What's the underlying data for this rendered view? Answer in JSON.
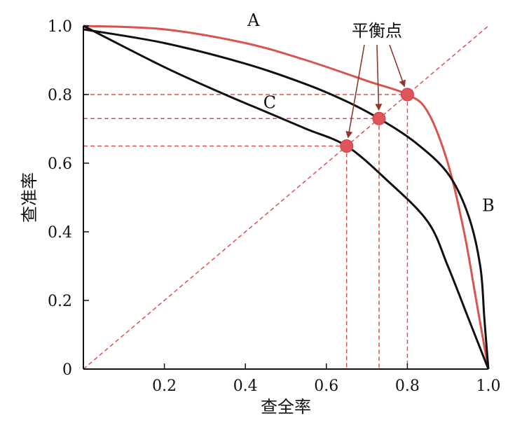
{
  "chart_data": {
    "type": "line",
    "title": "",
    "xlabel": "查全率",
    "ylabel": "查准率",
    "xlim": [
      0,
      1
    ],
    "ylim": [
      0,
      1
    ],
    "x_ticks": [
      {
        "value": 0.2,
        "label": "0.2"
      },
      {
        "value": 0.4,
        "label": "0.4"
      },
      {
        "value": 0.6,
        "label": "0.6"
      },
      {
        "value": 0.8,
        "label": "0.8"
      },
      {
        "value": 1.0,
        "label": "1.0"
      }
    ],
    "y_ticks": [
      {
        "value": 0,
        "label": "0"
      },
      {
        "value": 0.2,
        "label": "0.2"
      },
      {
        "value": 0.4,
        "label": "0.4"
      },
      {
        "value": 0.6,
        "label": "0.6"
      },
      {
        "value": 0.8,
        "label": "0.8"
      },
      {
        "value": 1.0,
        "label": "1.0"
      }
    ],
    "grid": false,
    "series": [
      {
        "name": "A",
        "color": "#d9534f",
        "points": [
          [
            0,
            1.0
          ],
          [
            0.2,
            0.99
          ],
          [
            0.4,
            0.95
          ],
          [
            0.55,
            0.9
          ],
          [
            0.7,
            0.84
          ],
          [
            0.8,
            0.8
          ],
          [
            0.85,
            0.75
          ],
          [
            0.9,
            0.6
          ],
          [
            0.94,
            0.4
          ],
          [
            0.97,
            0.2
          ],
          [
            1.0,
            0.0
          ]
        ]
      },
      {
        "name": "B",
        "color": "#111111",
        "points": [
          [
            0,
            0.99
          ],
          [
            0.2,
            0.95
          ],
          [
            0.4,
            0.89
          ],
          [
            0.55,
            0.83
          ],
          [
            0.65,
            0.78
          ],
          [
            0.73,
            0.73
          ],
          [
            0.82,
            0.66
          ],
          [
            0.9,
            0.57
          ],
          [
            0.95,
            0.45
          ],
          [
            0.98,
            0.3
          ],
          [
            0.99,
            0.15
          ],
          [
            1.0,
            0.0
          ]
        ]
      },
      {
        "name": "C",
        "color": "#111111",
        "points": [
          [
            0,
            1.0
          ],
          [
            0.2,
            0.88
          ],
          [
            0.35,
            0.8
          ],
          [
            0.45,
            0.75
          ],
          [
            0.55,
            0.7
          ],
          [
            0.65,
            0.65
          ],
          [
            0.75,
            0.55
          ],
          [
            0.85,
            0.43
          ],
          [
            0.9,
            0.3
          ],
          [
            0.95,
            0.15
          ],
          [
            1.0,
            0.0
          ]
        ]
      }
    ],
    "series_labels": [
      {
        "name": "A",
        "x": 0.42,
        "y": 1.0
      },
      {
        "name": "B",
        "x": 1.0,
        "y": 0.46
      },
      {
        "name": "C",
        "x": 0.46,
        "y": 0.76
      }
    ],
    "diagonal": {
      "from": [
        0,
        0
      ],
      "to": [
        1,
        1
      ],
      "color": "#d9534f",
      "style": "dashed"
    },
    "equilibrium_points": [
      {
        "x": 0.65,
        "y": 0.65
      },
      {
        "x": 0.73,
        "y": 0.73
      },
      {
        "x": 0.8,
        "y": 0.8
      }
    ],
    "annotation": {
      "text": "平衡点"
    },
    "colors": {
      "highlight": "#d9534f",
      "curve": "#111111",
      "point": "#e0545a"
    }
  }
}
